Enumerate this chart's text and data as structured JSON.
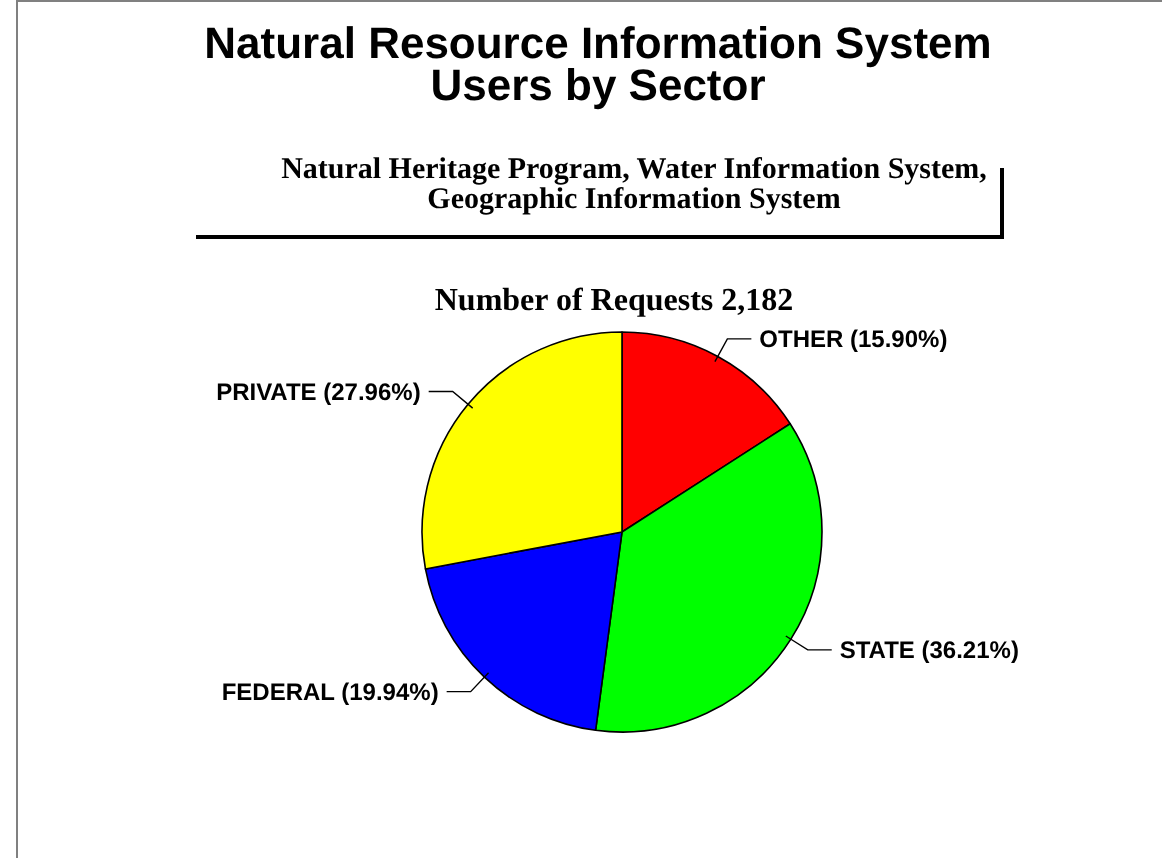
{
  "chart_data": {
    "type": "pie",
    "title": "Natural Resource Information System Users by Sector",
    "subtitle": "Natural Heritage Program, Water Information System, Geographic Information System",
    "annotations": [
      "Number of Requests 2,182"
    ],
    "categories": [
      "OTHER",
      "STATE",
      "FEDERAL",
      "PRIVATE"
    ],
    "values": [
      15.9,
      36.21,
      19.94,
      27.96
    ],
    "colors": [
      "#ff0000",
      "#00ff00",
      "#0000ff",
      "#ffff00"
    ],
    "value_labels": [
      "(15.90%)",
      "(36.21%)",
      "(19.94%)",
      "(27.96%)"
    ]
  }
}
